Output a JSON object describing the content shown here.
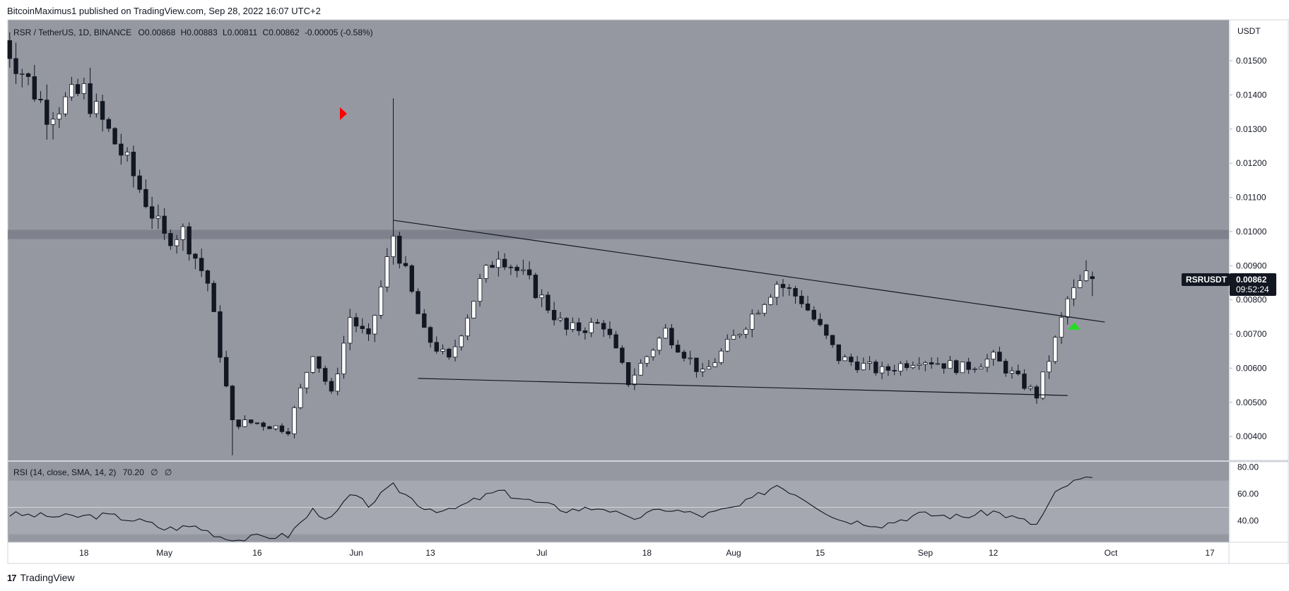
{
  "header": {
    "text": "BitcoinMaximus1 published on TradingView.com, Sep 28, 2022 16:07 UTC+2"
  },
  "legend": {
    "pair": "RSR / TetherUS, 1D, BINANCE",
    "o_label": "O",
    "o_val": "0.00868",
    "h_label": "H",
    "h_val": "0.00883",
    "l_label": "L",
    "l_val": "0.00811",
    "c_label": "C",
    "c_val": "0.00862",
    "change": "-0.00005 (-0.58%)"
  },
  "price_axis": {
    "currency": "USDT",
    "labels": [
      "0.01500",
      "0.01400",
      "0.01300",
      "0.01200",
      "0.01100",
      "0.01000",
      "0.00900",
      "0.00800",
      "0.00700",
      "0.00600",
      "0.00500",
      "0.00400"
    ]
  },
  "symbol_badge": {
    "symbol": "RSRUSDT",
    "price": "0.00862",
    "countdown": "09:52:24"
  },
  "rsi": {
    "label": "RSI (14, close, SMA, 14, 2)",
    "value": "70.20",
    "extra1": "∅",
    "extra2": "∅",
    "axis_labels": [
      "80.00",
      "60.00",
      "40.00"
    ]
  },
  "time_axis": {
    "labels": [
      "18",
      "May",
      "16",
      "Jun",
      "13",
      "Jul",
      "18",
      "Aug",
      "15",
      "Sep",
      "12",
      "Oct",
      "17"
    ]
  },
  "footer": {
    "brand": "TradingView",
    "logo": "17"
  },
  "colors": {
    "plot_bg": "#9598a1",
    "band": "#787b86",
    "candle_up": "#ffffff",
    "candle_down": "#131722",
    "rsi_band": "#a5a8b0",
    "arrow_red": "#ff0000",
    "arrow_green": "#22dd22"
  },
  "chart_data": {
    "type": "candlestick",
    "title": "RSR / TetherUS, 1D, BINANCE",
    "ylabel": "USDT",
    "ylim": [
      0.0033,
      0.0162
    ],
    "x_start": "2022-04-05",
    "x_end": "2022-09-28",
    "resistance_band": [
      0.00978,
      0.01005
    ],
    "trendlines": [
      {
        "name": "descending-resistance",
        "from": [
          "2022-06-07",
          0.01033
        ],
        "to": [
          "2022-09-30",
          0.00735
        ]
      },
      {
        "name": "descending-support",
        "from": [
          "2022-06-11",
          0.0057
        ],
        "to": [
          "2022-09-24",
          0.0052
        ]
      }
    ],
    "markers": [
      {
        "name": "red-arrow",
        "date": "2022-06-01",
        "price": 0.01345
      },
      {
        "name": "green-arrow",
        "date": "2022-09-26",
        "price": 0.00725
      }
    ],
    "anchors": [
      [
        "2022-04-05",
        0.0156
      ],
      [
        "2022-04-12",
        0.0135
      ],
      [
        "2022-04-18",
        0.0141
      ],
      [
        "2022-04-25",
        0.012
      ],
      [
        "2022-05-01",
        0.0098
      ],
      [
        "2022-05-04",
        0.01
      ],
      [
        "2022-05-08",
        0.0085
      ],
      [
        "2022-05-12",
        0.0044
      ],
      [
        "2022-05-16",
        0.0044
      ],
      [
        "2022-05-21",
        0.0042
      ],
      [
        "2022-05-25",
        0.0065
      ],
      [
        "2022-05-28",
        0.0052
      ],
      [
        "2022-05-31",
        0.0075
      ],
      [
        "2022-06-03",
        0.0068
      ],
      [
        "2022-06-07",
        0.0099
      ],
      [
        "2022-06-12",
        0.007
      ],
      [
        "2022-06-16",
        0.0062
      ],
      [
        "2022-06-21",
        0.0085
      ],
      [
        "2022-06-24",
        0.0094
      ],
      [
        "2022-06-29",
        0.0085
      ],
      [
        "2022-07-05",
        0.0071
      ],
      [
        "2022-07-11",
        0.0073
      ],
      [
        "2022-07-15",
        0.0056
      ],
      [
        "2022-07-21",
        0.0071
      ],
      [
        "2022-07-27",
        0.0058
      ],
      [
        "2022-08-02",
        0.0071
      ],
      [
        "2022-08-08",
        0.0085
      ],
      [
        "2022-08-12",
        0.008
      ],
      [
        "2022-08-18",
        0.0063
      ],
      [
        "2022-08-25",
        0.0059
      ],
      [
        "2022-08-31",
        0.0063
      ],
      [
        "2022-09-07",
        0.006
      ],
      [
        "2022-09-12",
        0.0063
      ],
      [
        "2022-09-19",
        0.0052
      ],
      [
        "2022-09-22",
        0.0068
      ],
      [
        "2022-09-24",
        0.008
      ],
      [
        "2022-09-27",
        0.0087
      ],
      [
        "2022-09-28",
        0.00862
      ]
    ],
    "last_candle": {
      "date": "2022-09-28",
      "open": 0.00868,
      "high": 0.00883,
      "low": 0.00811,
      "close": 0.00862
    },
    "rsi_series": [
      [
        "2022-04-05",
        45
      ],
      [
        "2022-04-15",
        43
      ],
      [
        "2022-04-22",
        44
      ],
      [
        "2022-04-28",
        39
      ],
      [
        "2022-05-01",
        34
      ],
      [
        "2022-05-06",
        36
      ],
      [
        "2022-05-12",
        25
      ],
      [
        "2022-05-16",
        28
      ],
      [
        "2022-05-21",
        29
      ],
      [
        "2022-05-25",
        48
      ],
      [
        "2022-05-28",
        41
      ],
      [
        "2022-05-31",
        59
      ],
      [
        "2022-06-03",
        52
      ],
      [
        "2022-06-07",
        66
      ],
      [
        "2022-06-12",
        50
      ],
      [
        "2022-06-16",
        47
      ],
      [
        "2022-06-21",
        57
      ],
      [
        "2022-06-24",
        62
      ],
      [
        "2022-06-29",
        55
      ],
      [
        "2022-07-05",
        48
      ],
      [
        "2022-07-11",
        50
      ],
      [
        "2022-07-15",
        41
      ],
      [
        "2022-07-21",
        49
      ],
      [
        "2022-07-27",
        44
      ],
      [
        "2022-08-02",
        51
      ],
      [
        "2022-08-08",
        67
      ],
      [
        "2022-08-12",
        58
      ],
      [
        "2022-08-18",
        41
      ],
      [
        "2022-08-25",
        37
      ],
      [
        "2022-08-31",
        45
      ],
      [
        "2022-09-07",
        43
      ],
      [
        "2022-09-12",
        47
      ],
      [
        "2022-09-19",
        37
      ],
      [
        "2022-09-22",
        60
      ],
      [
        "2022-09-24",
        67
      ],
      [
        "2022-09-27",
        72
      ],
      [
        "2022-09-28",
        70.2
      ]
    ],
    "rsi_ylim": [
      24,
      84
    ],
    "rsi_band": [
      30,
      70
    ],
    "rsi_midline": 50,
    "x_ticks": [
      [
        "2022-04-18",
        "18"
      ],
      [
        "2022-05-01",
        "May"
      ],
      [
        "2022-05-16",
        "16"
      ],
      [
        "2022-06-01",
        "Jun"
      ],
      [
        "2022-06-13",
        "13"
      ],
      [
        "2022-07-01",
        "Jul"
      ],
      [
        "2022-07-18",
        "18"
      ],
      [
        "2022-08-01",
        "Aug"
      ],
      [
        "2022-08-15",
        "15"
      ],
      [
        "2022-09-01",
        "Sep"
      ],
      [
        "2022-09-12",
        "12"
      ],
      [
        "2022-10-01",
        "Oct"
      ],
      [
        "2022-10-17",
        "17"
      ]
    ],
    "y_ticks": [
      0.015,
      0.014,
      0.013,
      0.012,
      0.011,
      0.01,
      0.009,
      0.008,
      0.007,
      0.006,
      0.005,
      0.004
    ],
    "rsi_ticks": [
      80,
      60,
      40
    ]
  }
}
